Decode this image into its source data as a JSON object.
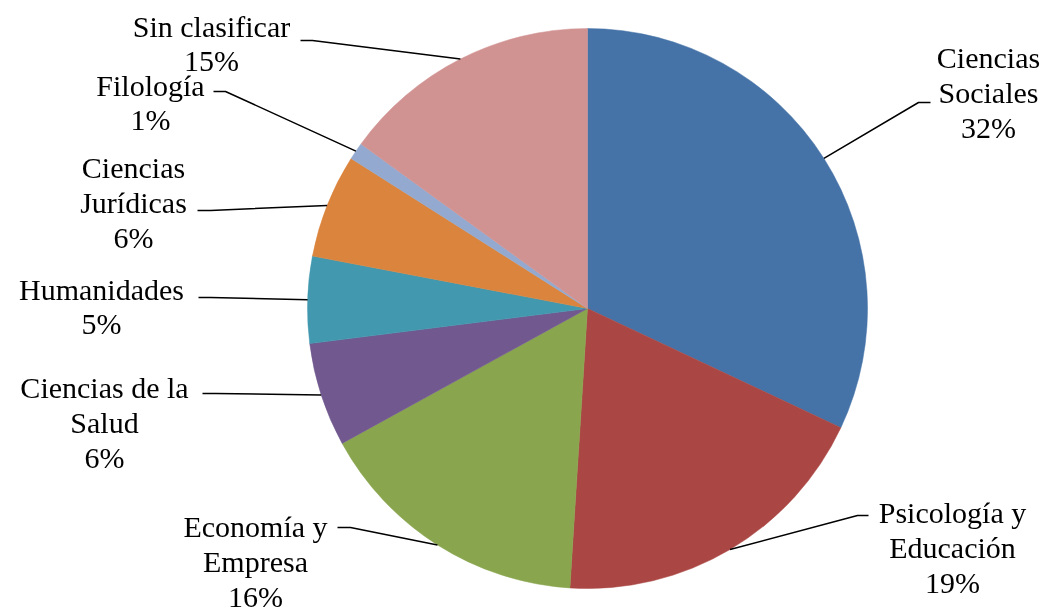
{
  "chart_data": {
    "type": "pie",
    "categories": [
      "Ciencias Sociales",
      "Psicología y Educación",
      "Economía y Empresa",
      "Ciencias de la Salud",
      "Humanidades",
      "Ciencias Jurídicas",
      "Filología",
      "Sin clasificar"
    ],
    "values": [
      32,
      19,
      16,
      6,
      5,
      6,
      1,
      15
    ],
    "value_labels": [
      "32%",
      "19%",
      "16%",
      "6%",
      "5%",
      "6%",
      "1%",
      "15%"
    ],
    "colors": [
      "#4572a7",
      "#aa4643",
      "#89a54e",
      "#71588f",
      "#4198af",
      "#db843d",
      "#93a9cf",
      "#d19392"
    ]
  }
}
